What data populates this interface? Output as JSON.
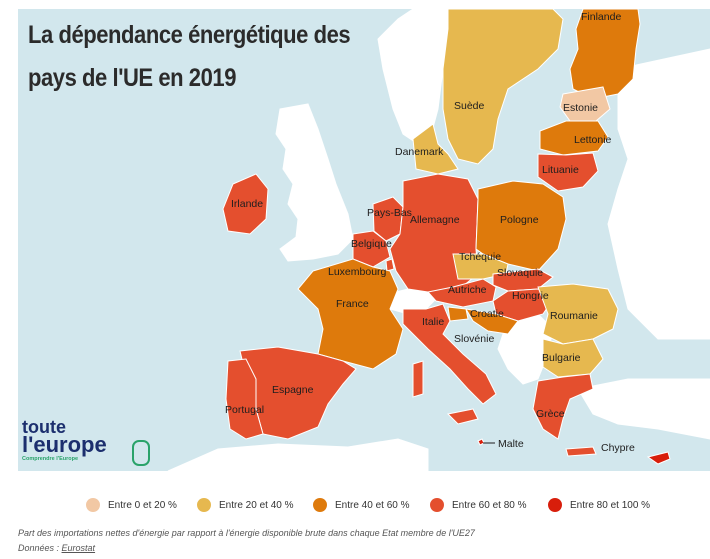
{
  "title": {
    "line1": "La dépendance énergétique des",
    "line2": "pays de l'UE en 2019"
  },
  "colors": {
    "sea": "#d2e7ed",
    "non_eu": "#ffffff",
    "cat_0_20": "#f2c8a4",
    "cat_20_40": "#e6b84f",
    "cat_40_60": "#de7a0c",
    "cat_60_80": "#e44f2e",
    "cat_80_100": "#d81e0b",
    "border": "#ffffff"
  },
  "countries": [
    {
      "name": "Finlande",
      "category": "cat_40_60"
    },
    {
      "name": "Suède",
      "category": "cat_20_40"
    },
    {
      "name": "Estonie",
      "category": "cat_0_20"
    },
    {
      "name": "Lettonie",
      "category": "cat_40_60"
    },
    {
      "name": "Danemark",
      "category": "cat_20_40"
    },
    {
      "name": "Lituanie",
      "category": "cat_60_80"
    },
    {
      "name": "Irlande",
      "category": "cat_60_80"
    },
    {
      "name": "Pays-Bas",
      "category": "cat_60_80"
    },
    {
      "name": "Allemagne",
      "category": "cat_60_80"
    },
    {
      "name": "Pologne",
      "category": "cat_40_60"
    },
    {
      "name": "Belgique",
      "category": "cat_60_80"
    },
    {
      "name": "Tchéquie",
      "category": "cat_20_40"
    },
    {
      "name": "Luxembourg",
      "category": "cat_60_80"
    },
    {
      "name": "Slovaquie",
      "category": "cat_60_80"
    },
    {
      "name": "Autriche",
      "category": "cat_60_80"
    },
    {
      "name": "Hongrie",
      "category": "cat_60_80"
    },
    {
      "name": "France",
      "category": "cat_40_60"
    },
    {
      "name": "Roumanie",
      "category": "cat_20_40"
    },
    {
      "name": "Croatie",
      "category": "cat_40_60"
    },
    {
      "name": "Italie",
      "category": "cat_60_80"
    },
    {
      "name": "Slovénie",
      "category": "cat_40_60"
    },
    {
      "name": "Bulgarie",
      "category": "cat_20_40"
    },
    {
      "name": "Espagne",
      "category": "cat_60_80"
    },
    {
      "name": "Portugal",
      "category": "cat_60_80"
    },
    {
      "name": "Grèce",
      "category": "cat_60_80"
    },
    {
      "name": "Malte",
      "category": "cat_80_100"
    },
    {
      "name": "Chypre",
      "category": "cat_80_100"
    }
  ],
  "legend": [
    {
      "label": "Entre 0 et 20 %",
      "category": "cat_0_20"
    },
    {
      "label": "Entre 20 et 40 %",
      "category": "cat_20_40"
    },
    {
      "label": "Entre 40 et 60 %",
      "category": "cat_40_60"
    },
    {
      "label": "Entre 60 et 80 %",
      "category": "cat_60_80"
    },
    {
      "label": "Entre 80 et 100 %",
      "category": "cat_80_100"
    }
  ],
  "footnote": {
    "line1": "Part des importations nettes d'énergie par rapport à l'énergie disponible brute dans chaque Etat membre de l'UE27",
    "source_prefix": "Données : ",
    "source_link": "Eurostat"
  },
  "logo": {
    "line1": "toute",
    "line2": "l'europe",
    "tagline": "Comprendre l'Europe",
    "badge": "eu"
  }
}
